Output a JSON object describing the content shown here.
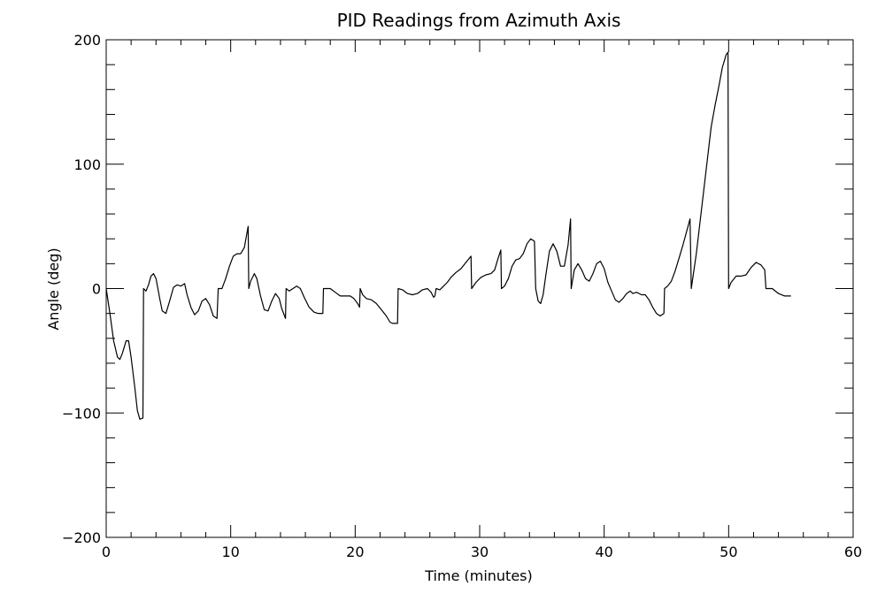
{
  "chart_data": {
    "type": "line",
    "title": "PID Readings from Azimuth Axis",
    "xlabel": "Time (minutes)",
    "ylabel": "Angle (deg)",
    "xlim": [
      0,
      60
    ],
    "ylim": [
      -200,
      200
    ],
    "xticks": [
      0,
      10,
      20,
      30,
      40,
      50,
      60
    ],
    "yticks": [
      -200,
      -100,
      0,
      100,
      200
    ],
    "x_minor_step": 2,
    "y_minor_step": 20,
    "grid": false,
    "line_color": "#000000",
    "series": [
      {
        "points": [
          [
            0.0,
            0
          ],
          [
            0.3,
            -20
          ],
          [
            0.6,
            -42
          ],
          [
            0.9,
            -55
          ],
          [
            1.1,
            -57
          ],
          [
            1.3,
            -52
          ],
          [
            1.6,
            -42
          ],
          [
            1.8,
            -42
          ],
          [
            2.0,
            -55
          ],
          [
            2.3,
            -80
          ],
          [
            2.5,
            -98
          ],
          [
            2.7,
            -105
          ],
          [
            2.95,
            -104
          ],
          [
            3.0,
            0
          ],
          [
            3.2,
            -2
          ],
          [
            3.4,
            3
          ],
          [
            3.6,
            10
          ],
          [
            3.8,
            12
          ],
          [
            4.0,
            8
          ],
          [
            4.3,
            -8
          ],
          [
            4.5,
            -18
          ],
          [
            4.8,
            -20
          ],
          [
            5.1,
            -10
          ],
          [
            5.4,
            1
          ],
          [
            5.7,
            3
          ],
          [
            6.0,
            2
          ],
          [
            6.3,
            4
          ],
          [
            6.5,
            -5
          ],
          [
            6.8,
            -15
          ],
          [
            7.1,
            -21
          ],
          [
            7.4,
            -18
          ],
          [
            7.7,
            -10
          ],
          [
            8.0,
            -8
          ],
          [
            8.3,
            -13
          ],
          [
            8.6,
            -22
          ],
          [
            8.9,
            -24
          ],
          [
            9.0,
            0
          ],
          [
            9.3,
            0
          ],
          [
            9.6,
            8
          ],
          [
            9.9,
            18
          ],
          [
            10.2,
            26
          ],
          [
            10.5,
            28
          ],
          [
            10.8,
            28
          ],
          [
            11.1,
            33
          ],
          [
            11.4,
            50
          ],
          [
            11.45,
            0
          ],
          [
            11.6,
            6
          ],
          [
            11.9,
            12
          ],
          [
            12.1,
            8
          ],
          [
            12.4,
            -6
          ],
          [
            12.7,
            -17
          ],
          [
            13.0,
            -18
          ],
          [
            13.3,
            -10
          ],
          [
            13.6,
            -4
          ],
          [
            13.9,
            -8
          ],
          [
            14.1,
            -16
          ],
          [
            14.4,
            -24
          ],
          [
            14.45,
            0
          ],
          [
            14.7,
            -2
          ],
          [
            15.0,
            0
          ],
          [
            15.3,
            2
          ],
          [
            15.6,
            0
          ],
          [
            15.9,
            -7
          ],
          [
            16.3,
            -15
          ],
          [
            16.7,
            -19
          ],
          [
            17.0,
            -20
          ],
          [
            17.4,
            -20
          ],
          [
            17.45,
            0
          ],
          [
            18.0,
            0
          ],
          [
            18.4,
            -3
          ],
          [
            18.8,
            -6
          ],
          [
            19.2,
            -6
          ],
          [
            19.6,
            -6
          ],
          [
            19.9,
            -8
          ],
          [
            20.2,
            -12
          ],
          [
            20.35,
            -15
          ],
          [
            20.4,
            0
          ],
          [
            20.6,
            -5
          ],
          [
            20.9,
            -8
          ],
          [
            21.3,
            -9
          ],
          [
            21.7,
            -12
          ],
          [
            22.1,
            -17
          ],
          [
            22.5,
            -22
          ],
          [
            22.8,
            -27
          ],
          [
            23.0,
            -28
          ],
          [
            23.4,
            -28
          ],
          [
            23.45,
            0
          ],
          [
            23.8,
            -1
          ],
          [
            24.2,
            -4
          ],
          [
            24.6,
            -5
          ],
          [
            25.0,
            -4
          ],
          [
            25.4,
            -1
          ],
          [
            25.8,
            0
          ],
          [
            26.1,
            -3
          ],
          [
            26.3,
            -7
          ],
          [
            26.4,
            -6
          ],
          [
            26.5,
            0
          ],
          [
            26.8,
            -1
          ],
          [
            27.1,
            2
          ],
          [
            27.4,
            5
          ],
          [
            27.7,
            9
          ],
          [
            28.1,
            13
          ],
          [
            28.5,
            16
          ],
          [
            28.9,
            21
          ],
          [
            29.3,
            26
          ],
          [
            29.35,
            0
          ],
          [
            29.7,
            5
          ],
          [
            30.1,
            9
          ],
          [
            30.5,
            11
          ],
          [
            30.9,
            12
          ],
          [
            31.2,
            15
          ],
          [
            31.5,
            25
          ],
          [
            31.7,
            31
          ],
          [
            31.75,
            0
          ],
          [
            32.0,
            2
          ],
          [
            32.3,
            8
          ],
          [
            32.6,
            18
          ],
          [
            32.9,
            23
          ],
          [
            33.2,
            24
          ],
          [
            33.5,
            28
          ],
          [
            33.8,
            36
          ],
          [
            34.1,
            40
          ],
          [
            34.4,
            38
          ],
          [
            34.5,
            0
          ],
          [
            34.7,
            -10
          ],
          [
            34.9,
            -12
          ],
          [
            35.1,
            -5
          ],
          [
            35.3,
            10
          ],
          [
            35.6,
            30
          ],
          [
            35.9,
            36
          ],
          [
            36.2,
            30
          ],
          [
            36.5,
            18
          ],
          [
            36.8,
            18
          ],
          [
            37.1,
            35
          ],
          [
            37.3,
            56
          ],
          [
            37.35,
            0
          ],
          [
            37.6,
            15
          ],
          [
            37.9,
            20
          ],
          [
            38.2,
            15
          ],
          [
            38.5,
            8
          ],
          [
            38.8,
            6
          ],
          [
            39.1,
            12
          ],
          [
            39.4,
            20
          ],
          [
            39.7,
            22
          ],
          [
            40.0,
            16
          ],
          [
            40.3,
            5
          ],
          [
            40.6,
            -2
          ],
          [
            40.9,
            -9
          ],
          [
            41.2,
            -11
          ],
          [
            41.5,
            -8
          ],
          [
            41.8,
            -4
          ],
          [
            42.1,
            -2
          ],
          [
            42.3,
            -4
          ],
          [
            42.6,
            -3
          ],
          [
            43.0,
            -5
          ],
          [
            43.3,
            -5
          ],
          [
            43.6,
            -9
          ],
          [
            43.9,
            -15
          ],
          [
            44.2,
            -20
          ],
          [
            44.5,
            -22
          ],
          [
            44.8,
            -20
          ],
          [
            44.85,
            0
          ],
          [
            45.1,
            2
          ],
          [
            45.4,
            6
          ],
          [
            45.7,
            14
          ],
          [
            46.0,
            24
          ],
          [
            46.3,
            34
          ],
          [
            46.6,
            45
          ],
          [
            46.9,
            56
          ],
          [
            47.0,
            0
          ],
          [
            47.4,
            28
          ],
          [
            47.8,
            62
          ],
          [
            48.2,
            96
          ],
          [
            48.6,
            130
          ],
          [
            48.9,
            147
          ],
          [
            49.2,
            162
          ],
          [
            49.5,
            178
          ],
          [
            49.8,
            188
          ],
          [
            49.95,
            190
          ],
          [
            50.0,
            0
          ],
          [
            50.2,
            5
          ],
          [
            50.6,
            10
          ],
          [
            51.0,
            10
          ],
          [
            51.4,
            11
          ],
          [
            51.8,
            17
          ],
          [
            52.2,
            21
          ],
          [
            52.6,
            19
          ],
          [
            52.9,
            15
          ],
          [
            53.0,
            0
          ],
          [
            53.5,
            0
          ],
          [
            54.0,
            -4
          ],
          [
            54.5,
            -6
          ],
          [
            55.0,
            -6
          ]
        ]
      }
    ]
  }
}
